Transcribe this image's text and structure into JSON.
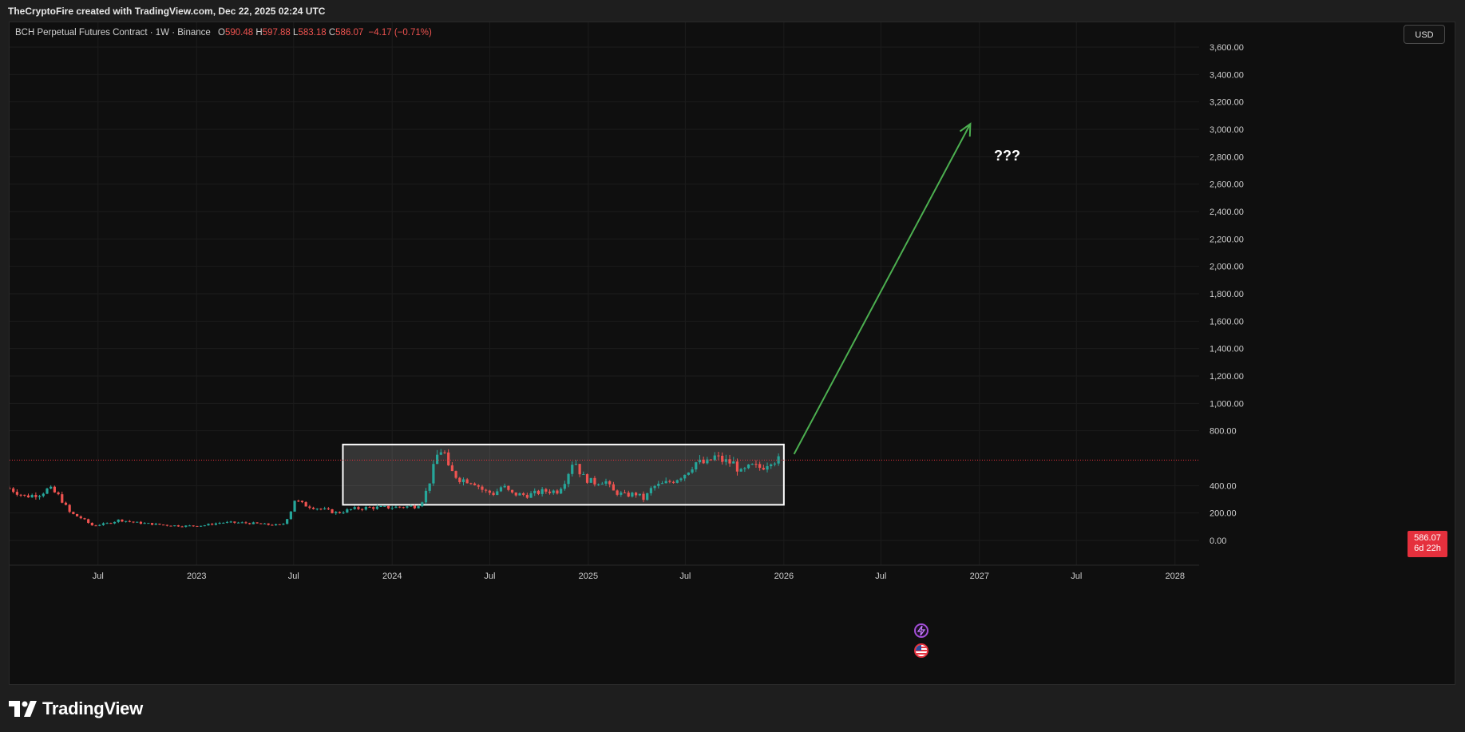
{
  "header": {
    "text": "TheCryptoFire created with TradingView.com, Dec 22, 2025 02:24 UTC"
  },
  "legend": {
    "symbol": "BCH Perpetual Futures Contract · 1W · Binance",
    "open_label": "O",
    "open": "590.48",
    "high_label": "H",
    "high": "597.88",
    "low_label": "L",
    "low": "583.18",
    "close_label": "C",
    "close": "586.07",
    "change": "−4.17 (−0.71%)"
  },
  "currency_button": "USD",
  "price_tag": {
    "price": "586.07",
    "countdown": "6d 22h"
  },
  "annotation": {
    "text": "???"
  },
  "footer": {
    "brand": "TradingView"
  },
  "colors": {
    "up": "#26a69a",
    "down": "#ef5350",
    "arrow": "#4caf50",
    "box_border": "#ffffff",
    "price_line": "#e5303d"
  },
  "icons": [
    "tradingview-logo-icon",
    "lightning-event-icon",
    "us-flag-event-icon"
  ],
  "chart_data": {
    "type": "candlestick",
    "interval": "1W",
    "current_price": 586.07,
    "y_ticks": [
      "0.00",
      "200.00",
      "400.00",
      "800.00",
      "1,000.00",
      "1,200.00",
      "1,400.00",
      "1,600.00",
      "1,800.00",
      "2,000.00",
      "2,200.00",
      "2,400.00",
      "2,600.00",
      "2,800.00",
      "3,000.00",
      "3,200.00",
      "3,400.00",
      "3,600.00"
    ],
    "y_tick_values": [
      0,
      200,
      400,
      800,
      1000,
      1200,
      1400,
      1600,
      1800,
      2000,
      2200,
      2400,
      2600,
      2800,
      3000,
      3200,
      3400,
      3600
    ],
    "ylim": [
      -60,
      3700
    ],
    "x_ticks": [
      {
        "label": "Jul",
        "date": "2022-07-01"
      },
      {
        "label": "2023",
        "date": "2023-01-01"
      },
      {
        "label": "Jul",
        "date": "2023-07-01"
      },
      {
        "label": "2024",
        "date": "2024-01-01"
      },
      {
        "label": "Jul",
        "date": "2024-07-01"
      },
      {
        "label": "2025",
        "date": "2025-01-01"
      },
      {
        "label": "Jul",
        "date": "2025-07-01"
      },
      {
        "label": "2026",
        "date": "2026-01-01"
      },
      {
        "label": "Jul",
        "date": "2026-07-01"
      },
      {
        "label": "2027",
        "date": "2027-01-01"
      },
      {
        "label": "Jul",
        "date": "2027-07-01"
      },
      {
        "label": "2028",
        "date": "2028-01-01"
      }
    ],
    "xlim": [
      "2022-01-17",
      "2028-02-15"
    ],
    "price_series": [
      [
        "2022-01-17",
        380
      ],
      [
        "2022-02-15",
        320
      ],
      [
        "2022-03-15",
        340
      ],
      [
        "2022-04-01",
        380
      ],
      [
        "2022-04-20",
        320
      ],
      [
        "2022-05-10",
        200
      ],
      [
        "2022-06-01",
        160
      ],
      [
        "2022-06-20",
        110
      ],
      [
        "2022-07-15",
        120
      ],
      [
        "2022-08-10",
        150
      ],
      [
        "2022-09-10",
        130
      ],
      [
        "2022-10-10",
        120
      ],
      [
        "2022-11-10",
        110
      ],
      [
        "2022-12-10",
        105
      ],
      [
        "2023-01-15",
        110
      ],
      [
        "2023-02-15",
        130
      ],
      [
        "2023-03-15",
        130
      ],
      [
        "2023-04-15",
        125
      ],
      [
        "2023-05-15",
        115
      ],
      [
        "2023-06-10",
        110
      ],
      [
        "2023-06-25",
        200
      ],
      [
        "2023-07-01",
        300
      ],
      [
        "2023-07-20",
        260
      ],
      [
        "2023-08-20",
        230
      ],
      [
        "2023-09-20",
        200
      ],
      [
        "2023-10-20",
        230
      ],
      [
        "2023-11-20",
        240
      ],
      [
        "2023-12-20",
        240
      ],
      [
        "2024-01-20",
        245
      ],
      [
        "2024-02-15",
        250
      ],
      [
        "2024-02-28",
        300
      ],
      [
        "2024-03-10",
        420
      ],
      [
        "2024-03-25",
        620
      ],
      [
        "2024-04-05",
        680
      ],
      [
        "2024-04-15",
        520
      ],
      [
        "2024-05-05",
        450
      ],
      [
        "2024-06-01",
        430
      ],
      [
        "2024-06-20",
        360
      ],
      [
        "2024-07-10",
        340
      ],
      [
        "2024-07-25",
        400
      ],
      [
        "2024-08-10",
        340
      ],
      [
        "2024-09-10",
        330
      ],
      [
        "2024-10-10",
        360
      ],
      [
        "2024-11-05",
        360
      ],
      [
        "2024-11-20",
        450
      ],
      [
        "2024-12-05",
        600
      ],
      [
        "2024-12-20",
        470
      ],
      [
        "2025-01-10",
        420
      ],
      [
        "2025-02-01",
        440
      ],
      [
        "2025-02-15",
        360
      ],
      [
        "2025-03-10",
        330
      ],
      [
        "2025-04-01",
        340
      ],
      [
        "2025-04-15",
        300
      ],
      [
        "2025-05-01",
        390
      ],
      [
        "2025-05-20",
        410
      ],
      [
        "2025-06-10",
        440
      ],
      [
        "2025-07-01",
        490
      ],
      [
        "2025-07-20",
        570
      ],
      [
        "2025-08-10",
        560
      ],
      [
        "2025-08-25",
        610
      ],
      [
        "2025-09-10",
        580
      ],
      [
        "2025-10-01",
        560
      ],
      [
        "2025-10-12",
        490
      ],
      [
        "2025-11-01",
        540
      ],
      [
        "2025-11-20",
        530
      ],
      [
        "2025-12-08",
        590
      ],
      [
        "2025-12-22",
        586
      ]
    ],
    "annotations": [
      {
        "type": "rectangle",
        "from": [
          "2023-10-01",
          700
        ],
        "to": [
          "2026-01-01",
          260
        ]
      },
      {
        "type": "arrow",
        "from": [
          "2026-01-20",
          630
        ],
        "to": [
          "2026-12-15",
          3040
        ]
      },
      {
        "type": "text",
        "text": "???",
        "at": [
          "2027-02-15",
          2820
        ]
      }
    ]
  }
}
